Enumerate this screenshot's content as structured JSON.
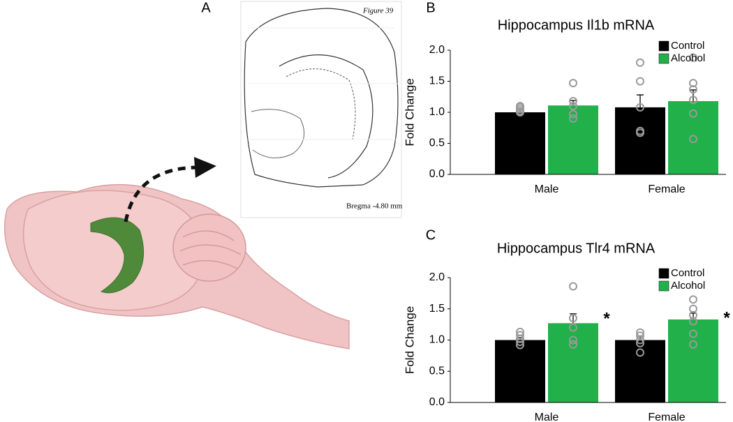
{
  "panels": [
    "A",
    "B",
    "C"
  ],
  "atlas": {
    "figure_label": "Figure 39",
    "bregma": "Bregma -4.80 mm"
  },
  "chart_data": [
    {
      "type": "bar",
      "title": "Hippocampus Il1b mRNA",
      "y_label": "Fold Change",
      "categories": [
        "Male",
        "Female"
      ],
      "series": [
        {
          "name": "Control",
          "color": "#000000",
          "values": [
            1.0,
            1.08
          ],
          "errors": [
            0.03,
            0.2
          ],
          "points": [
            [
              1.0,
              1.02,
              1.05,
              1.08,
              1.1
            ],
            [
              0.67,
              0.7,
              1.08,
              1.5,
              1.8
            ]
          ]
        },
        {
          "name": "Alcohol",
          "color": "#22b04b",
          "values": [
            1.11,
            1.18
          ],
          "errors": [
            0.08,
            0.18
          ],
          "points": [
            [
              0.9,
              0.97,
              1.1,
              1.18,
              1.47
            ],
            [
              0.57,
              0.98,
              1.2,
              1.37,
              1.47,
              1.88
            ]
          ]
        }
      ],
      "ylim": [
        0,
        2
      ],
      "yticks": [
        {
          "value": 0,
          "label": "0.0"
        },
        {
          "value": 0.5,
          "label": "0.5"
        },
        {
          "value": 1,
          "label": "1.0"
        },
        {
          "value": 1.5,
          "label": "1.5"
        },
        {
          "value": 2,
          "label": "2.0"
        }
      ],
      "legend": "top-right"
    },
    {
      "type": "bar",
      "title": "Hippocampus Tlr4 mRNA",
      "y_label": "Fold Change",
      "categories": [
        "Male",
        "Female"
      ],
      "series": [
        {
          "name": "Control",
          "color": "#000000",
          "values": [
            1.0,
            1.0
          ],
          "errors": [
            0.04,
            0.05
          ],
          "points": [
            [
              0.92,
              0.97,
              1.02,
              1.08,
              1.13
            ],
            [
              0.8,
              0.95,
              1.0,
              1.07,
              1.12
            ]
          ]
        },
        {
          "name": "Alcohol",
          "color": "#22b04b",
          "values": [
            1.27,
            1.33
          ],
          "errors": [
            0.15,
            0.1
          ],
          "points": [
            [
              0.93,
              1.0,
              1.2,
              1.35,
              1.86
            ],
            [
              0.93,
              1.1,
              1.3,
              1.4,
              1.5,
              1.65
            ]
          ],
          "annotations": [
            "*",
            "*"
          ]
        }
      ],
      "ylim": [
        0,
        2
      ],
      "yticks": [
        {
          "value": 0,
          "label": "0.0"
        },
        {
          "value": 0.5,
          "label": "0.5"
        },
        {
          "value": 1,
          "label": "1.0"
        },
        {
          "value": 1.5,
          "label": "1.5"
        },
        {
          "value": 2,
          "label": "2.0"
        }
      ],
      "legend": "top-right"
    }
  ]
}
